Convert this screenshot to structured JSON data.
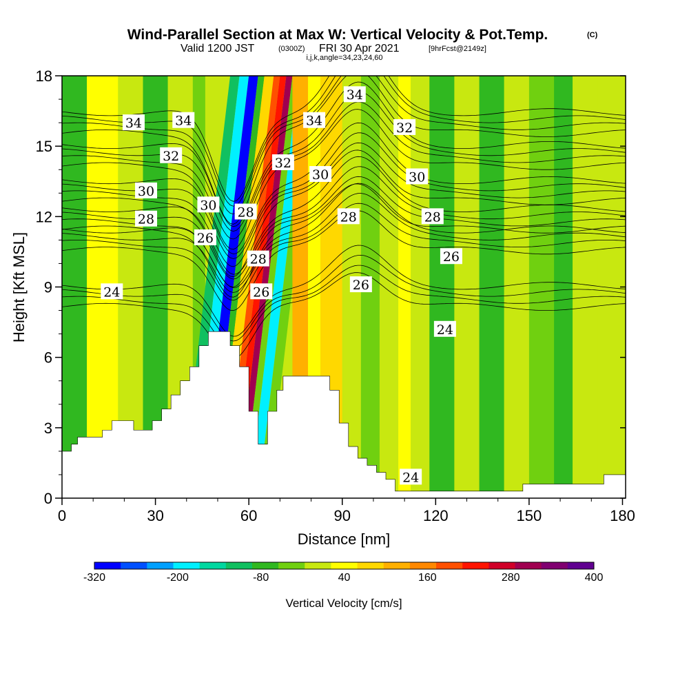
{
  "title": {
    "main": "Wind-Parallel Section at Max W: Vertical Velocity & Pot.Temp.",
    "copyright": "(C)",
    "valid_prefix": "Valid 1200 JST",
    "valid_utc": "(0300Z)",
    "valid_date": "FRI 30 Apr 2021",
    "forecast": "[9hrFcst@2149z]",
    "params": "i,j,k,angle=34,23,24,60"
  },
  "chart_data": {
    "type": "heatmap",
    "xlabel": "Distance [nm]",
    "ylabel": "Height [Kft MSL]",
    "xlim": [
      0,
      181
    ],
    "ylim": [
      0,
      18
    ],
    "x_ticks": [
      0,
      30,
      60,
      90,
      120,
      150,
      180
    ],
    "y_ticks": [
      0,
      3,
      6,
      9,
      12,
      15,
      18
    ],
    "colorbar": {
      "title": "Vertical Velocity [cm/s]",
      "levels": [
        -320,
        -280,
        -240,
        -200,
        -160,
        -120,
        -80,
        -40,
        0,
        40,
        80,
        120,
        160,
        200,
        240,
        280,
        320,
        360,
        400
      ],
      "tick_labels": [
        -320,
        -200,
        -80,
        40,
        160,
        280,
        400
      ],
      "colors": [
        "#0000ff",
        "#0050ff",
        "#00a0ff",
        "#00f0ff",
        "#00d8a0",
        "#10c060",
        "#30b820",
        "#70d010",
        "#c8e810",
        "#ffff00",
        "#ffd800",
        "#ffb000",
        "#ff8800",
        "#ff5000",
        "#ff1400",
        "#d00028",
        "#a00050",
        "#800070",
        "#600090"
      ]
    },
    "terrain_profile": {
      "x": [
        0,
        3,
        5,
        10,
        13,
        16,
        23,
        29,
        32,
        35,
        38,
        41,
        44,
        47,
        49,
        52,
        54,
        57,
        60,
        63,
        66,
        69,
        71,
        74,
        78,
        82,
        86,
        89,
        92,
        95,
        98,
        101,
        104,
        107,
        109,
        115,
        140,
        148,
        158,
        168,
        174,
        181
      ],
      "y": [
        2.0,
        2.3,
        2.6,
        2.6,
        2.9,
        3.3,
        2.9,
        3.3,
        3.8,
        4.4,
        5.0,
        5.6,
        6.5,
        7.1,
        7.1,
        7.1,
        6.5,
        5.6,
        3.7,
        2.3,
        3.7,
        4.6,
        5.2,
        5.2,
        5.2,
        5.2,
        4.6,
        3.2,
        2.2,
        1.7,
        1.4,
        1.1,
        0.8,
        0.3,
        0.3,
        0.3,
        0.3,
        0.6,
        0.6,
        0.6,
        1.0,
        1.0
      ]
    },
    "theta_contours": {
      "values": [
        24,
        26,
        28,
        30,
        32,
        34
      ],
      "base_heights": [
        8.6,
        11.0,
        11.9,
        13.1,
        14.6,
        16.0
      ]
    },
    "contour_labels": [
      {
        "text": "34",
        "x": 23,
        "y": 16.0
      },
      {
        "text": "34",
        "x": 39,
        "y": 16.1
      },
      {
        "text": "34",
        "x": 81,
        "y": 16.1
      },
      {
        "text": "34",
        "x": 94,
        "y": 17.2
      },
      {
        "text": "32",
        "x": 35,
        "y": 14.6
      },
      {
        "text": "32",
        "x": 71,
        "y": 14.3
      },
      {
        "text": "32",
        "x": 110,
        "y": 15.8
      },
      {
        "text": "30",
        "x": 27,
        "y": 13.1
      },
      {
        "text": "30",
        "x": 47,
        "y": 12.5
      },
      {
        "text": "30",
        "x": 83,
        "y": 13.8
      },
      {
        "text": "30",
        "x": 114,
        "y": 13.7
      },
      {
        "text": "28",
        "x": 27,
        "y": 11.9
      },
      {
        "text": "28",
        "x": 59,
        "y": 12.2
      },
      {
        "text": "28",
        "x": 63,
        "y": 10.2
      },
      {
        "text": "28",
        "x": 92,
        "y": 12.0
      },
      {
        "text": "28",
        "x": 119,
        "y": 12.0
      },
      {
        "text": "26",
        "x": 46,
        "y": 11.1
      },
      {
        "text": "26",
        "x": 64,
        "y": 8.8
      },
      {
        "text": "26",
        "x": 96,
        "y": 9.1
      },
      {
        "text": "26",
        "x": 125,
        "y": 10.3
      },
      {
        "text": "24",
        "x": 16,
        "y": 8.8
      },
      {
        "text": "24",
        "x": 123,
        "y": 7.2
      },
      {
        "text": "24",
        "x": 112,
        "y": 0.9
      }
    ],
    "velocity_bands": [
      {
        "x0": 0,
        "x1": 8,
        "value": -60
      },
      {
        "x0": 8,
        "x1": 18,
        "value": 40
      },
      {
        "x0": 18,
        "x1": 26,
        "value": 20
      },
      {
        "x0": 26,
        "x1": 34,
        "value": -60
      },
      {
        "x0": 34,
        "x1": 42,
        "value": 0
      },
      {
        "x0": 42,
        "x1": 46,
        "value": -40
      },
      {
        "x0": 46,
        "x1": 49,
        "value": -120
      },
      {
        "x0": 49,
        "x1": 52,
        "value": -200
      },
      {
        "x0": 52,
        "x1": 55,
        "value": -300
      },
      {
        "x0": 55,
        "x1": 57,
        "value": -80
      },
      {
        "x0": 57,
        "x1": 60,
        "value": 80
      },
      {
        "x0": 60,
        "x1": 62,
        "value": 200
      },
      {
        "x0": 62,
        "x1": 64,
        "value": 260
      },
      {
        "x0": 64,
        "x1": 66,
        "value": 320
      },
      {
        "x0": 66,
        "x1": 68,
        "value": -40
      },
      {
        "x0": 68,
        "x1": 71,
        "value": -200
      },
      {
        "x0": 71,
        "x1": 74,
        "value": -40
      },
      {
        "x0": 74,
        "x1": 79,
        "value": 120
      },
      {
        "x0": 79,
        "x1": 83,
        "value": 40
      },
      {
        "x0": 83,
        "x1": 90,
        "value": 80
      },
      {
        "x0": 90,
        "x1": 96,
        "value": 20
      },
      {
        "x0": 96,
        "x1": 102,
        "value": -40
      },
      {
        "x0": 102,
        "x1": 108,
        "value": 20
      },
      {
        "x0": 108,
        "x1": 112,
        "value": 60
      },
      {
        "x0": 112,
        "x1": 118,
        "value": 20
      },
      {
        "x0": 118,
        "x1": 126,
        "value": -60
      },
      {
        "x0": 126,
        "x1": 134,
        "value": 20
      },
      {
        "x0": 134,
        "x1": 142,
        "value": -60
      },
      {
        "x0": 142,
        "x1": 150,
        "value": 20
      },
      {
        "x0": 150,
        "x1": 158,
        "value": -40
      },
      {
        "x0": 158,
        "x1": 164,
        "value": -80
      },
      {
        "x0": 164,
        "x1": 172,
        "value": 20
      },
      {
        "x0": 172,
        "x1": 181,
        "value": 0
      }
    ]
  }
}
